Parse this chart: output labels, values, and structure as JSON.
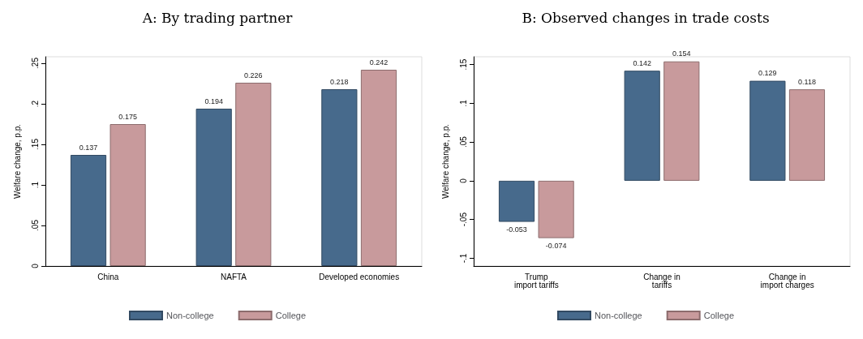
{
  "chart_data": [
    {
      "type": "bar",
      "title": "A: By trading partner",
      "ylabel": "Welfare change, p.p.",
      "categories": [
        "China",
        "NAFTA",
        "Developed economies"
      ],
      "series": [
        {
          "name": "Non-college",
          "color": "#476a8c",
          "values": [
            0.137,
            0.194,
            0.218
          ]
        },
        {
          "name": "College",
          "color": "#c89a9c",
          "values": [
            0.175,
            0.226,
            0.242
          ]
        }
      ],
      "ylim": [
        0,
        0.258
      ],
      "yticks": [
        0,
        {
          "value": 0.05,
          "label": ".05"
        },
        {
          "value": 0.1,
          "label": ".1"
        },
        {
          "value": 0.15,
          "label": ".15"
        },
        {
          "value": 0.2,
          "label": ".2"
        },
        {
          "value": 0.25,
          "label": ".25"
        }
      ],
      "grid": false,
      "legend": "bottom",
      "data_labels": true
    },
    {
      "type": "bar",
      "title": "B: Observed changes in trade costs",
      "ylabel": "Welfare change, p.p.",
      "categories": [
        "Trump\nimport tariffs",
        "Change in\ntariffs",
        "Change in\nimport charges"
      ],
      "series": [
        {
          "name": "Non-college",
          "color": "#476a8c",
          "values": [
            -0.053,
            0.142,
            0.129
          ]
        },
        {
          "name": "College",
          "color": "#c89a9c",
          "values": [
            -0.074,
            0.154,
            0.118
          ]
        }
      ],
      "ylim": [
        -0.11,
        0.16
      ],
      "yticks": [
        {
          "value": -0.1,
          "label": "-.1"
        },
        {
          "value": -0.05,
          "label": "-.05"
        },
        0,
        {
          "value": 0.05,
          "label": ".05"
        },
        {
          "value": 0.1,
          "label": ".1"
        },
        {
          "value": 0.15,
          "label": ".15"
        }
      ],
      "grid": false,
      "legend": "bottom",
      "data_labels": true
    }
  ]
}
